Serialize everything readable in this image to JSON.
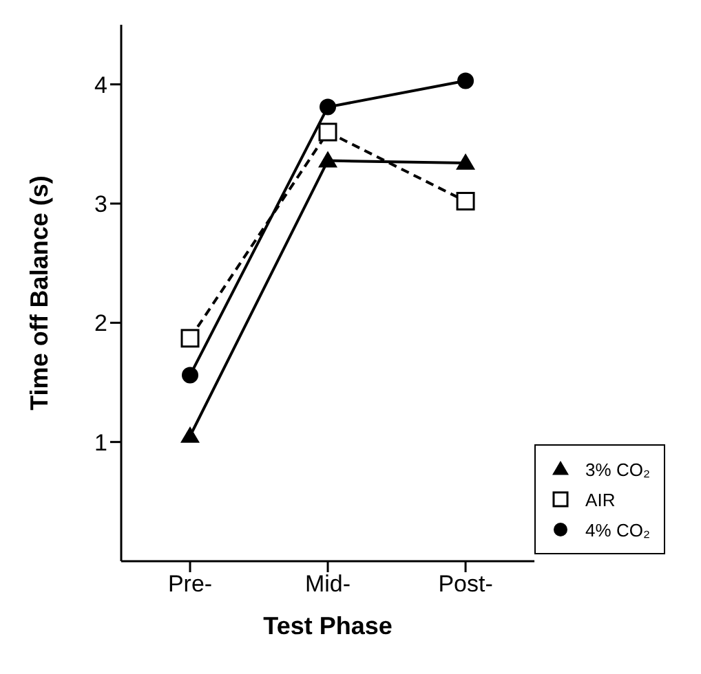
{
  "chart_data": {
    "type": "line",
    "xlabel": "Test Phase",
    "ylabel": "Time off Balance (s)",
    "categories": [
      "Pre-",
      "Mid-",
      "Post-"
    ],
    "series": [
      {
        "name": "3% CO₂",
        "color": "#000000",
        "marker": "triangle",
        "line_style": "solid",
        "values": [
          1.05,
          3.36,
          3.34
        ]
      },
      {
        "name": "AIR",
        "color": "#000000",
        "marker": "square",
        "line_style": "dashed",
        "values": [
          1.87,
          3.6,
          3.02
        ]
      },
      {
        "name": "4% CO₂",
        "color": "#000000",
        "marker": "circle",
        "line_style": "solid",
        "values": [
          1.56,
          3.81,
          4.03
        ]
      }
    ],
    "ylim": [
      0,
      4.5
    ],
    "yticks": [
      1,
      2,
      3,
      4
    ],
    "grid": false,
    "legend": "bottom right"
  }
}
